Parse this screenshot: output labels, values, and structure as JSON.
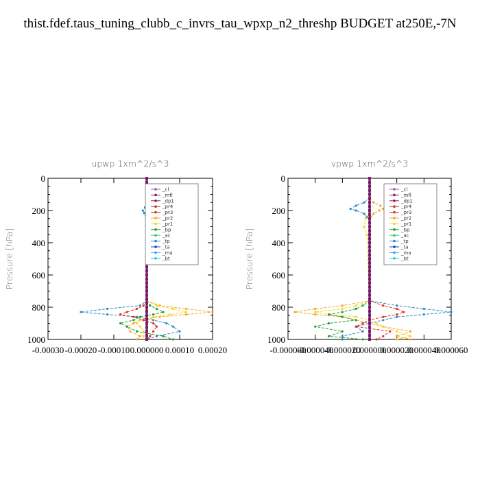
{
  "title": "thist.fdef.taus_tuning_clubb_c_invrs_tau_wpxp_n2_threshp  BUDGET at250E,-7N",
  "legend_entries": [
    {
      "name": "_cl",
      "color": "#9b59b6"
    },
    {
      "name": "_mfl",
      "color": "#7a1a6a"
    },
    {
      "name": "_dp1",
      "color": "#8b1a4a"
    },
    {
      "name": "_pr4",
      "color": "#c0392b"
    },
    {
      "name": "_pr3",
      "color": "#e03020"
    },
    {
      "name": "_pr2",
      "color": "#f5a623"
    },
    {
      "name": "_pr1",
      "color": "#f7d51d"
    },
    {
      "name": "_bp",
      "color": "#1a9e30"
    },
    {
      "name": "_ac",
      "color": "#2ecc71"
    },
    {
      "name": "_tp",
      "color": "#2a88c8"
    },
    {
      "name": "_ta",
      "color": "#1a3fbf"
    },
    {
      "name": "_ma",
      "color": "#3fa3e0"
    },
    {
      "name": "_bt",
      "color": "#1ad0e0"
    }
  ],
  "chart_data": [
    {
      "type": "line",
      "title": "upwp   1xm^2/s^3",
      "ylabel": "Pressure [hPa]",
      "xlabel": "",
      "xlim": [
        -0.0003,
        0.0002
      ],
      "ylim": [
        1000,
        0
      ],
      "x_tick_labels": [
        "-0.00030",
        "-0.00020",
        "-0.00010",
        "0.000000",
        "0.00010",
        "0.00020"
      ],
      "x_ticks": [
        -0.0003,
        -0.0002,
        -0.0001,
        0.0,
        0.0001,
        0.0002
      ],
      "y_ticks": [
        0,
        200,
        400,
        600,
        800,
        1000
      ],
      "y_tick_labels": [
        "0",
        "200",
        "400",
        "600",
        "800",
        "1000"
      ],
      "legend_position": "top-right",
      "series": [
        {
          "name": "_tp",
          "color": "#2a88c8",
          "pressure": [
            150,
            180,
            200,
            215,
            230,
            250,
            760,
            790,
            810,
            830,
            845,
            860,
            880,
            900,
            920,
            950,
            980,
            1000
          ],
          "values": [
            0.0,
            -5e-06,
            -1.2e-05,
            -8e-06,
            -3e-06,
            0.0,
            0.0,
            -2e-05,
            -0.00012,
            -0.0002,
            -0.00012,
            -3e-05,
            2e-05,
            6e-05,
            8e-05,
            0.0001,
            3e-05,
            0.0
          ]
        },
        {
          "name": "_pr2",
          "color": "#f5a623",
          "pressure": [
            150,
            180,
            200,
            215,
            230,
            250,
            760,
            790,
            810,
            830,
            845,
            860,
            880,
            900,
            920,
            950,
            980,
            1000
          ],
          "values": [
            0.0,
            4e-06,
            8e-06,
            5e-06,
            2e-06,
            0.0,
            0.0,
            4e-05,
            0.00012,
            0.0002,
            0.00012,
            4e-05,
            -2e-05,
            -4e-05,
            -6e-05,
            -5e-05,
            -2e-05,
            -3e-05
          ]
        },
        {
          "name": "_pr1",
          "color": "#f7d51d",
          "pressure": [
            760,
            790,
            810,
            830,
            845,
            860,
            880,
            900,
            920,
            950,
            980,
            1000
          ],
          "values": [
            0.0,
            3e-05,
            8e-05,
            0.00012,
            7e-05,
            2e-05,
            -2e-05,
            -3e-05,
            -2e-05,
            -1e-05,
            -1e-05,
            0.0
          ]
        },
        {
          "name": "_pr3",
          "color": "#e03020",
          "pressure": [
            760,
            790,
            810,
            830,
            845,
            860,
            880,
            900,
            920,
            950,
            980,
            1000
          ],
          "values": [
            0.0,
            -1e-05,
            -3e-05,
            -6e-05,
            -8e-05,
            -4e-05,
            -1e-05,
            2e-05,
            3e-05,
            2e-05,
            1e-05,
            0.0
          ]
        },
        {
          "name": "_bp",
          "color": "#1a9e30",
          "pressure": [
            760,
            790,
            810,
            830,
            845,
            860,
            880,
            900,
            920,
            950,
            980,
            1000
          ],
          "values": [
            0.0,
            1e-05,
            3e-05,
            5e-05,
            2e-05,
            -2e-05,
            -4e-05,
            -8e-05,
            -6e-05,
            -3e-05,
            5e-05,
            8e-05
          ]
        },
        {
          "name": "_cl",
          "color": "#9b59b6",
          "pressure": [
            0,
            1000
          ],
          "values": [
            0.0,
            0.0
          ]
        },
        {
          "name": "_mfl",
          "color": "#7a1a6a",
          "pressure": [
            0,
            1000
          ],
          "values": [
            0.0,
            0.0
          ]
        }
      ]
    },
    {
      "type": "line",
      "title": "vpwp   1xm^2/s^3",
      "ylabel": "Pressure [hPa]",
      "xlabel": "",
      "xlim": [
        -6e-05,
        6e-05
      ],
      "ylim": [
        1000,
        0
      ],
      "x_tick_labels": [
        "-0.000060",
        "-0.000040",
        "-0.000020",
        "0.000000",
        "0.000020",
        "0.000040",
        "0.000060"
      ],
      "x_ticks": [
        -6e-05,
        -4e-05,
        -2e-05,
        0.0,
        2e-05,
        4e-05,
        6e-05
      ],
      "y_ticks": [
        0,
        200,
        400,
        600,
        800,
        1000
      ],
      "y_tick_labels": [
        "0",
        "200",
        "400",
        "600",
        "800",
        "1000"
      ],
      "legend_position": "top-right",
      "series": [
        {
          "name": "_tp",
          "color": "#2a88c8",
          "pressure": [
            120,
            150,
            170,
            190,
            200,
            220,
            240,
            260,
            760,
            790,
            810,
            830,
            845,
            860,
            880,
            900,
            920,
            950,
            980,
            1000
          ],
          "values": [
            0.0,
            -4e-06,
            -1e-05,
            -1.4e-05,
            -1e-05,
            -4e-06,
            -2e-06,
            0.0,
            0.0,
            2e-05,
            4e-05,
            6e-05,
            4e-05,
            2e-05,
            1e-05,
            0.0,
            -1e-05,
            -5e-06,
            -2e-05,
            -2e-05
          ]
        },
        {
          "name": "_pr2",
          "color": "#f5a623",
          "pressure": [
            120,
            150,
            170,
            190,
            200,
            220,
            240,
            260,
            760,
            790,
            810,
            830,
            845,
            860,
            880,
            900,
            920,
            950,
            980,
            1000
          ],
          "values": [
            0.0,
            3e-06,
            8e-06,
            1e-05,
            7e-06,
            3e-06,
            1e-06,
            0.0,
            0.0,
            -2e-05,
            -4e-05,
            -5.5e-05,
            -4e-05,
            -2e-05,
            -1e-05,
            0.0,
            1e-05,
            3e-05,
            2e-05,
            3e-05
          ]
        },
        {
          "name": "_pr1",
          "color": "#f7d51d",
          "pressure": [
            200,
            250,
            300,
            350,
            760,
            790,
            810,
            830,
            845,
            860,
            880,
            900,
            920,
            950,
            980,
            1000
          ],
          "values": [
            0.0,
            -3e-06,
            -4e-06,
            -2e-06,
            0.0,
            -1e-05,
            -2e-05,
            -4e-05,
            -3e-05,
            -1e-05,
            0.0,
            5e-06,
            1e-05,
            2e-05,
            3e-05,
            2e-05
          ]
        },
        {
          "name": "_pr3",
          "color": "#e03020",
          "pressure": [
            760,
            790,
            810,
            830,
            845,
            860,
            880,
            900,
            920,
            950,
            980,
            1000
          ],
          "values": [
            0.0,
            1e-05,
            2e-05,
            2.5e-05,
            2e-05,
            1e-05,
            0.0,
            -5e-06,
            -1e-05,
            1.5e-05,
            1e-05,
            5e-06
          ]
        },
        {
          "name": "_bp",
          "color": "#1a9e30",
          "pressure": [
            760,
            790,
            810,
            830,
            845,
            860,
            880,
            900,
            920,
            950,
            980,
            1000
          ],
          "values": [
            0.0,
            -5e-06,
            -1e-05,
            -2e-05,
            -3e-05,
            -2e-05,
            -1e-05,
            -3e-05,
            -4e-05,
            -2e-05,
            -3e-05,
            -5e-06
          ]
        },
        {
          "name": "_cl",
          "color": "#9b59b6",
          "pressure": [
            0,
            1000
          ],
          "values": [
            0.0,
            0.0
          ]
        },
        {
          "name": "_mfl",
          "color": "#7a1a6a",
          "pressure": [
            0,
            1000
          ],
          "values": [
            0.0,
            0.0
          ]
        }
      ]
    }
  ]
}
